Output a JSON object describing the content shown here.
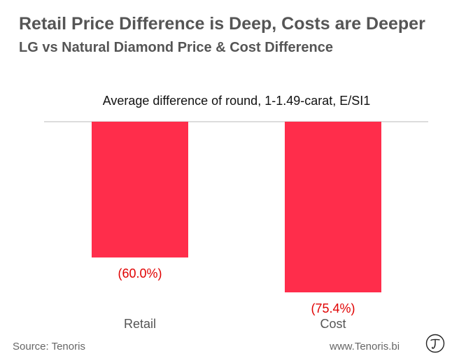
{
  "header": {
    "title": "Retail Price Difference is Deep, Costs are Deeper",
    "subtitle": "LG vs Natural Diamond Price & Cost Difference"
  },
  "chart_data": {
    "type": "bar",
    "title": "Average difference of round, 1-1.49-carat, E/SI1",
    "categories": [
      "Retail",
      "Cost"
    ],
    "values": [
      -60.0,
      -75.4
    ],
    "data_labels": [
      "(60.0%)",
      "(75.4%)"
    ],
    "ylim": [
      -100,
      0
    ],
    "grid": false,
    "legend": "none",
    "bar_color": "#ff2d4b",
    "label_color": "#e00000"
  },
  "footer": {
    "source": "Source: Tenoris",
    "website": "www.Tenoris.bi",
    "logo_icon": "tenoris-t-logo-icon"
  }
}
